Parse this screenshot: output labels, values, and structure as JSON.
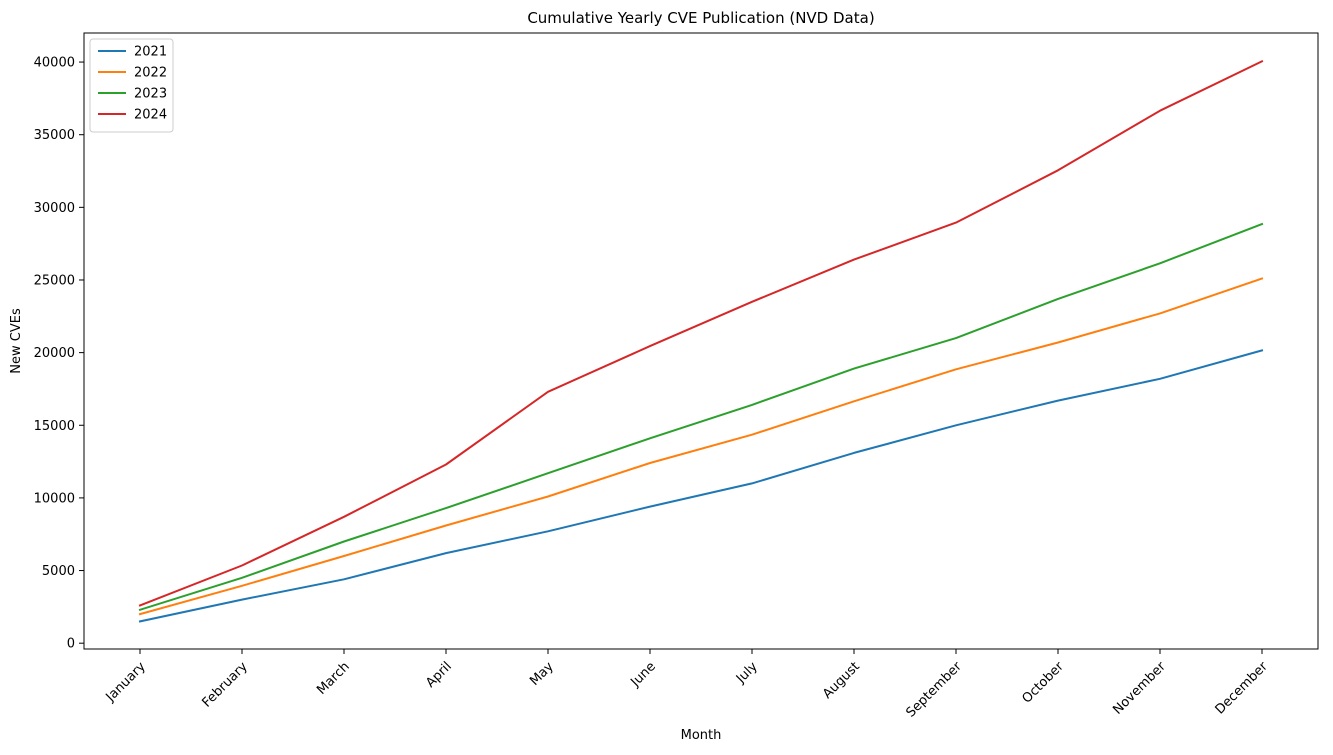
{
  "chart_data": {
    "type": "line",
    "title": "Cumulative Yearly CVE Publication (NVD Data)",
    "xlabel": "Month",
    "ylabel": "New CVEs",
    "categories": [
      "January",
      "February",
      "March",
      "April",
      "May",
      "June",
      "July",
      "August",
      "September",
      "October",
      "November",
      "December"
    ],
    "ylim": [
      -400,
      42000
    ],
    "yticks": [
      0,
      5000,
      10000,
      15000,
      20000,
      25000,
      30000,
      35000,
      40000
    ],
    "grid": false,
    "legend_position": "top-left",
    "series": [
      {
        "name": "2021",
        "color": "#1f77b4",
        "values": [
          1500,
          3000,
          4400,
          6200,
          7700,
          9400,
          11000,
          13100,
          15000,
          16700,
          18200,
          20150
        ]
      },
      {
        "name": "2022",
        "color": "#ff7f0e",
        "values": [
          2000,
          3950,
          6000,
          8100,
          10100,
          12400,
          14350,
          16650,
          18850,
          20700,
          22700,
          25100
        ]
      },
      {
        "name": "2023",
        "color": "#2ca02c",
        "values": [
          2300,
          4500,
          7000,
          9300,
          11700,
          14100,
          16400,
          18900,
          21000,
          23700,
          26150,
          28850
        ]
      },
      {
        "name": "2024",
        "color": "#d62728",
        "values": [
          2600,
          5350,
          8700,
          12300,
          17300,
          20450,
          23500,
          26400,
          28950,
          32550,
          36650,
          40050
        ]
      }
    ]
  }
}
